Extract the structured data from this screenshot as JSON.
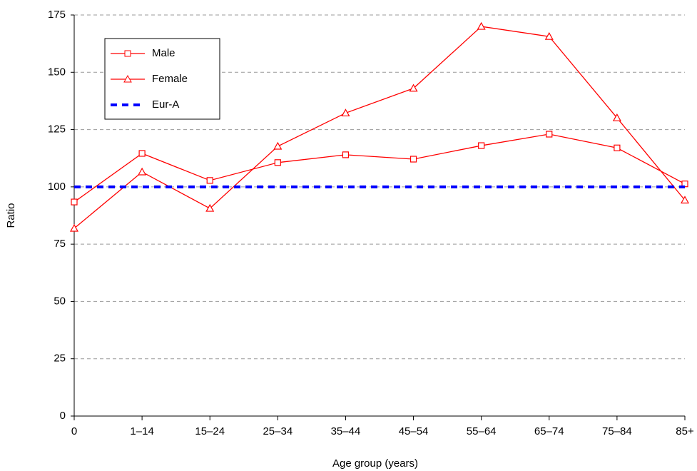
{
  "chart_data": {
    "type": "line",
    "x_label": "Age group (years)",
    "y_label": "Ratio",
    "categories": [
      "0",
      "1–14",
      "15–24",
      "25–34",
      "35–44",
      "45–54",
      "55–64",
      "65–74",
      "75–84",
      "85+"
    ],
    "series": [
      {
        "name": "Male",
        "color": "#ff0000",
        "marker": "square",
        "dashed": false,
        "values": [
          93.4,
          114.6,
          102.8,
          110.6,
          114.0,
          112.1,
          118.0,
          123.0,
          117.0,
          101.3
        ]
      },
      {
        "name": "Female",
        "color": "#ff0000",
        "marker": "triangle",
        "dashed": false,
        "values": [
          81.9,
          106.5,
          90.6,
          117.7,
          132.2,
          143.0,
          170.0,
          165.6,
          130.1,
          94.2
        ]
      },
      {
        "name": "Eur-A",
        "color": "#0000ff",
        "marker": "none",
        "dashed": true,
        "values": [
          100,
          100,
          100,
          100,
          100,
          100,
          100,
          100,
          100,
          100
        ]
      }
    ],
    "ylim": [
      0,
      175
    ],
    "yticks": [
      0,
      25,
      50,
      75,
      100,
      125,
      150,
      175
    ],
    "grid": true,
    "legend": "upper left"
  }
}
